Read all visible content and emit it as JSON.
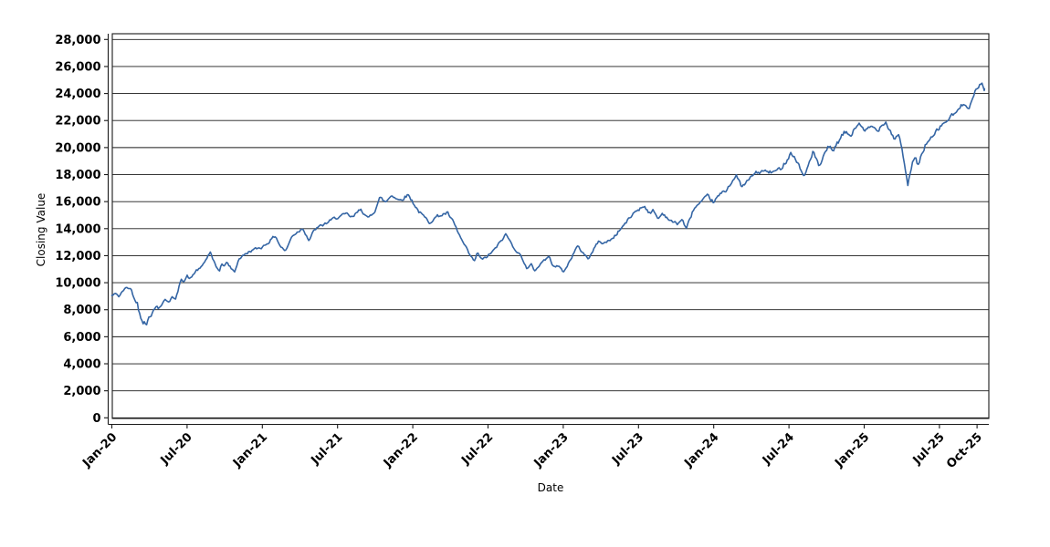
{
  "window": {
    "background": "#ffffff"
  },
  "chart_data": {
    "type": "line",
    "title": "",
    "xlabel": "Date",
    "ylabel": "Closing Value",
    "legend": "none",
    "grid": "horizontal-major-only",
    "line_color": "#3465a4",
    "axis_color": "#1a1a1a",
    "ylim": [
      0,
      28420
    ],
    "xlim_years_from_jan2020": [
      0,
      5.828
    ],
    "y_ticks": [
      0,
      2000,
      4000,
      6000,
      8000,
      10000,
      12000,
      14000,
      16000,
      18000,
      20000,
      22000,
      24000,
      26000,
      28000
    ],
    "x_ticks": [
      {
        "t": 0.0,
        "label": "Jan-20"
      },
      {
        "t": 0.5,
        "label": "Jul-20"
      },
      {
        "t": 1.0,
        "label": "Jan-21"
      },
      {
        "t": 1.5,
        "label": "Jul-21"
      },
      {
        "t": 2.0,
        "label": "Jan-22"
      },
      {
        "t": 2.5,
        "label": "Jul-22"
      },
      {
        "t": 3.0,
        "label": "Jan-23"
      },
      {
        "t": 3.5,
        "label": "Jul-23"
      },
      {
        "t": 4.0,
        "label": "Jan-24"
      },
      {
        "t": 4.5,
        "label": "Jul-24"
      },
      {
        "t": 5.0,
        "label": "Jan-25"
      },
      {
        "t": 5.5,
        "label": "Jul-25"
      },
      {
        "t": 5.75,
        "label": "Oct-25"
      }
    ],
    "series_name": "Closing Value",
    "points": [
      [
        0.0,
        9040
      ],
      [
        0.03,
        9200
      ],
      [
        0.048,
        8970
      ],
      [
        0.075,
        9420
      ],
      [
        0.1,
        9650
      ],
      [
        0.128,
        9530
      ],
      [
        0.148,
        8860
      ],
      [
        0.158,
        8520
      ],
      [
        0.168,
        8640
      ],
      [
        0.178,
        7960
      ],
      [
        0.19,
        7625
      ],
      [
        0.196,
        7170
      ],
      [
        0.202,
        7290
      ],
      [
        0.208,
        6950
      ],
      [
        0.218,
        7170
      ],
      [
        0.228,
        6840
      ],
      [
        0.248,
        7510
      ],
      [
        0.258,
        7400
      ],
      [
        0.278,
        8075
      ],
      [
        0.298,
        8300
      ],
      [
        0.31,
        8075
      ],
      [
        0.34,
        8520
      ],
      [
        0.355,
        8750
      ],
      [
        0.38,
        8600
      ],
      [
        0.4,
        8950
      ],
      [
        0.42,
        8700
      ],
      [
        0.44,
        9350
      ],
      [
        0.46,
        10350
      ],
      [
        0.48,
        10100
      ],
      [
        0.5,
        10500
      ],
      [
        0.52,
        10250
      ],
      [
        0.56,
        10900
      ],
      [
        0.59,
        11050
      ],
      [
        0.625,
        11700
      ],
      [
        0.655,
        12300
      ],
      [
        0.67,
        11700
      ],
      [
        0.695,
        11100
      ],
      [
        0.715,
        10900
      ],
      [
        0.73,
        11450
      ],
      [
        0.745,
        11110
      ],
      [
        0.76,
        11560
      ],
      [
        0.79,
        11100
      ],
      [
        0.815,
        10780
      ],
      [
        0.845,
        11790
      ],
      [
        0.875,
        12010
      ],
      [
        0.92,
        12350
      ],
      [
        0.96,
        12500
      ],
      [
        1.0,
        12650
      ],
      [
        1.04,
        13000
      ],
      [
        1.087,
        13475
      ],
      [
        1.12,
        12700
      ],
      [
        1.155,
        12345
      ],
      [
        1.2,
        13500
      ],
      [
        1.24,
        13810
      ],
      [
        1.27,
        14050
      ],
      [
        1.31,
        13140
      ],
      [
        1.35,
        13950
      ],
      [
        1.42,
        14370
      ],
      [
        1.49,
        14820
      ],
      [
        1.56,
        15050
      ],
      [
        1.6,
        14800
      ],
      [
        1.655,
        15500
      ],
      [
        1.7,
        14711
      ],
      [
        1.745,
        15300
      ],
      [
        1.78,
        16283
      ],
      [
        1.82,
        15950
      ],
      [
        1.86,
        16513
      ],
      [
        1.91,
        16100
      ],
      [
        1.97,
        16513
      ],
      [
        2.04,
        15270
      ],
      [
        2.08,
        14800
      ],
      [
        2.11,
        14489
      ],
      [
        2.16,
        14900
      ],
      [
        2.23,
        15164
      ],
      [
        2.27,
        14450
      ],
      [
        2.32,
        13250
      ],
      [
        2.38,
        12010
      ],
      [
        2.41,
        11560
      ],
      [
        2.43,
        12234
      ],
      [
        2.46,
        11672
      ],
      [
        2.49,
        11897
      ],
      [
        2.545,
        12460
      ],
      [
        2.62,
        13587
      ],
      [
        2.66,
        12800
      ],
      [
        2.73,
        11786
      ],
      [
        2.76,
        10997
      ],
      [
        2.79,
        11334
      ],
      [
        2.81,
        10884
      ],
      [
        2.87,
        11672
      ],
      [
        2.91,
        11897
      ],
      [
        2.93,
        11334
      ],
      [
        2.98,
        11110
      ],
      [
        3.005,
        10773
      ],
      [
        3.06,
        12000
      ],
      [
        3.095,
        12686
      ],
      [
        3.14,
        12100
      ],
      [
        3.17,
        11786
      ],
      [
        3.23,
        13023
      ],
      [
        3.28,
        12950
      ],
      [
        3.33,
        13300
      ],
      [
        3.42,
        14489
      ],
      [
        3.48,
        15300
      ],
      [
        3.54,
        15700
      ],
      [
        3.58,
        15045
      ],
      [
        3.6,
        15382
      ],
      [
        3.63,
        14700
      ],
      [
        3.66,
        15160
      ],
      [
        3.72,
        14500
      ],
      [
        3.76,
        14370
      ],
      [
        3.79,
        14700
      ],
      [
        3.818,
        13970
      ],
      [
        3.868,
        15500
      ],
      [
        3.93,
        16050
      ],
      [
        3.96,
        16395
      ],
      [
        4.0,
        15950
      ],
      [
        4.04,
        16507
      ],
      [
        4.08,
        16800
      ],
      [
        4.12,
        17526
      ],
      [
        4.15,
        17864
      ],
      [
        4.19,
        17075
      ],
      [
        4.27,
        18080
      ],
      [
        4.33,
        18250
      ],
      [
        4.39,
        18150
      ],
      [
        4.44,
        18400
      ],
      [
        4.48,
        19000
      ],
      [
        4.515,
        19654
      ],
      [
        4.57,
        18642
      ],
      [
        4.6,
        17743
      ],
      [
        4.66,
        19766
      ],
      [
        4.7,
        18530
      ],
      [
        4.76,
        19991
      ],
      [
        4.8,
        19850
      ],
      [
        4.83,
        20440
      ],
      [
        4.87,
        21115
      ],
      [
        4.91,
        20900
      ],
      [
        4.97,
        21902
      ],
      [
        5.0,
        21115
      ],
      [
        5.05,
        21565
      ],
      [
        5.085,
        21250
      ],
      [
        5.14,
        22010
      ],
      [
        5.2,
        20666
      ],
      [
        5.23,
        21050
      ],
      [
        5.27,
        18755
      ],
      [
        5.29,
        17068
      ],
      [
        5.32,
        18900
      ],
      [
        5.34,
        19207
      ],
      [
        5.355,
        18642
      ],
      [
        5.41,
        20328
      ],
      [
        5.46,
        20778
      ],
      [
        5.49,
        21340
      ],
      [
        5.55,
        22010
      ],
      [
        5.62,
        22685
      ],
      [
        5.67,
        23360
      ],
      [
        5.7,
        23022
      ],
      [
        5.73,
        23923
      ],
      [
        5.78,
        24822
      ],
      [
        5.8,
        24350
      ]
    ]
  }
}
